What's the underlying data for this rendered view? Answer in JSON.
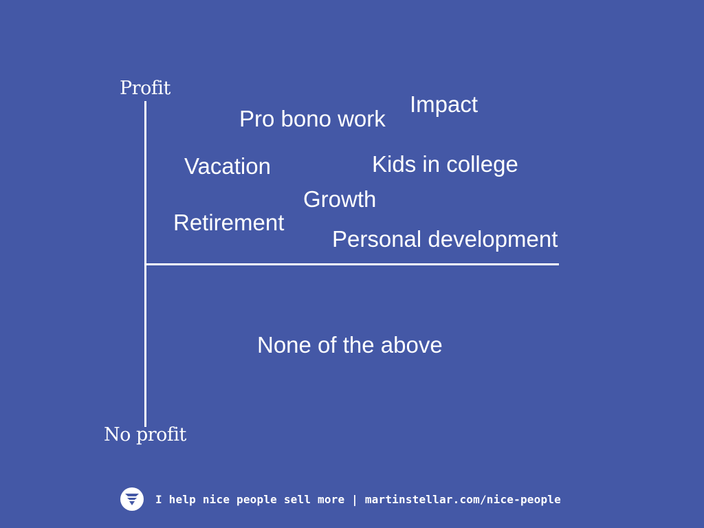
{
  "diagram": {
    "axis": {
      "top_label": "Profit",
      "bottom_label": "No profit"
    },
    "items": {
      "impact": "Impact",
      "pro_bono": "Pro bono work",
      "vacation": "Vacation",
      "kids_in_college": "Kids in college",
      "growth": "Growth",
      "retirement": "Retirement",
      "personal_development": "Personal development",
      "none_of_the_above": "None of the above"
    }
  },
  "footer": {
    "logo_icon": "funnel-badge-icon",
    "text": "I help nice people sell more | martinstellar.com/nice-people"
  },
  "colors": {
    "background": "#4458a6",
    "foreground": "#ffffff"
  }
}
